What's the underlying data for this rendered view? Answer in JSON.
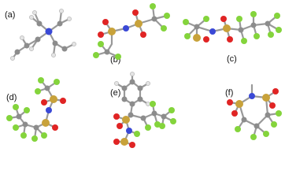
{
  "labels": [
    "(a)",
    "(b)",
    "(c)",
    "(d)",
    "(e)",
    "(f)"
  ]
}
